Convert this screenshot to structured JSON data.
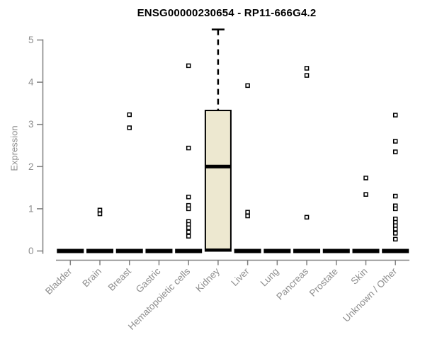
{
  "chart_data": {
    "type": "boxplot",
    "title": "ENSG00000230654 - RP11-666G4.2",
    "ylabel": "Expression",
    "xlabel": "",
    "ylim": [
      0,
      5
    ],
    "yticks": [
      0,
      1,
      2,
      3,
      4,
      5
    ],
    "grid": false,
    "legend": "none",
    "categories": [
      "Bladder",
      "Brain",
      "Breast",
      "Gastric",
      "Hematopoietic cells",
      "Kidney",
      "Liver",
      "Lung",
      "Pancreas",
      "Prostate",
      "Skin",
      "Unknown / Other"
    ],
    "boxes": [
      {
        "category": "Bladder",
        "median": 0,
        "q1": 0,
        "q3": 0,
        "whisker_low": 0,
        "whisker_high": 0,
        "outliers": []
      },
      {
        "category": "Brain",
        "median": 0,
        "q1": 0,
        "q3": 0,
        "whisker_low": 0,
        "whisker_high": 0,
        "outliers": [
          0.97,
          0.88
        ]
      },
      {
        "category": "Breast",
        "median": 0,
        "q1": 0,
        "q3": 0,
        "whisker_low": 0,
        "whisker_high": 0,
        "outliers": [
          3.23,
          2.92
        ]
      },
      {
        "category": "Gastric",
        "median": 0,
        "q1": 0,
        "q3": 0,
        "whisker_low": 0,
        "whisker_high": 0,
        "outliers": []
      },
      {
        "category": "Hematopoietic cells",
        "median": 0,
        "q1": 0,
        "q3": 0,
        "whisker_low": 0,
        "whisker_high": 0,
        "outliers": [
          4.39,
          2.44,
          1.28,
          1.08,
          1.0,
          0.7,
          0.63,
          0.55,
          0.45,
          0.35
        ]
      },
      {
        "category": "Kidney",
        "median": 2.0,
        "q1": 0,
        "q3": 3.33,
        "whisker_low": 0,
        "whisker_high": 5.25,
        "outliers": []
      },
      {
        "category": "Liver",
        "median": 0,
        "q1": 0,
        "q3": 0,
        "whisker_low": 0,
        "whisker_high": 0,
        "outliers": [
          3.92,
          0.92,
          0.83
        ]
      },
      {
        "category": "Lung",
        "median": 0,
        "q1": 0,
        "q3": 0,
        "whisker_low": 0,
        "whisker_high": 0,
        "outliers": []
      },
      {
        "category": "Pancreas",
        "median": 0,
        "q1": 0,
        "q3": 0,
        "whisker_low": 0,
        "whisker_high": 0,
        "outliers": [
          4.33,
          4.16,
          0.8
        ]
      },
      {
        "category": "Prostate",
        "median": 0,
        "q1": 0,
        "q3": 0,
        "whisker_low": 0,
        "whisker_high": 0,
        "outliers": []
      },
      {
        "category": "Skin",
        "median": 0,
        "q1": 0,
        "q3": 0,
        "whisker_low": 0,
        "whisker_high": 0,
        "outliers": [
          1.73,
          1.34
        ]
      },
      {
        "category": "Unknown / Other",
        "median": 0,
        "q1": 0,
        "q3": 0,
        "whisker_low": 0,
        "whisker_high": 0,
        "outliers": [
          3.22,
          2.6,
          2.35,
          1.3,
          1.07,
          1.0,
          0.76,
          0.68,
          0.6,
          0.52,
          0.42,
          0.28
        ]
      }
    ],
    "colors": {
      "box_fill": "#EDE8D0",
      "box_stroke": "#000000",
      "median": "#000000",
      "whisker": "#000000",
      "outlier_fill": "#FFFFFF",
      "outlier_stroke": "#000000",
      "axis": "#7F7F7F",
      "tick_label": "#8E8E8E",
      "title": "#000000"
    }
  }
}
